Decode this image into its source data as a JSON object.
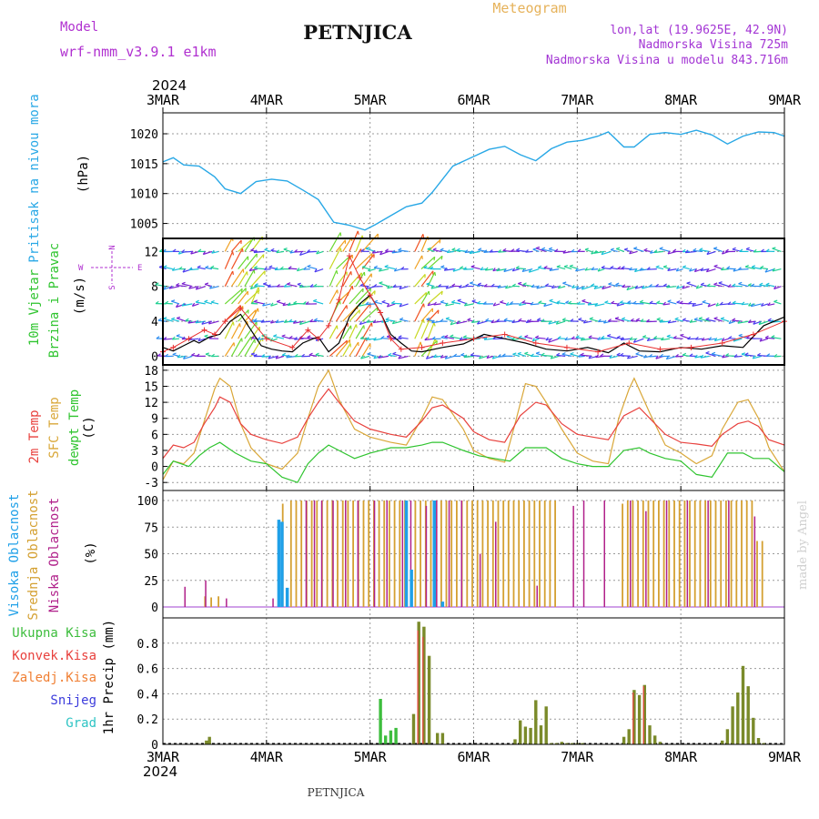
{
  "header": {
    "title": "PETNJICA",
    "subtitle": "Meteogram",
    "model_label": "Model",
    "model_name": "wrf-nmm_v3.9.1 e1km",
    "coords": "lon,lat (19.9625E, 42.9N)",
    "elevation": "Nadmorska Visina 725m",
    "model_elevation": "Nadmorska Visina u modelu 843.716m"
  },
  "axis": {
    "year": "2024",
    "dates": [
      "3MAR",
      "4MAR",
      "5MAR",
      "6MAR",
      "7MAR",
      "8MAR",
      "9MAR"
    ],
    "xlim": [
      0,
      6
    ]
  },
  "footer": {
    "location": "PETNJICA",
    "credit": "made by Angel"
  },
  "colors": {
    "pressure": "#29a8e6",
    "temp2m": "#e8413d",
    "sfc_temp": "#d9a738",
    "dewpt": "#2fc42f",
    "cloud_high": "#1fa0e8",
    "cloud_mid": "#d4a031",
    "cloud_low": "#b0208a",
    "precip_total": "#3dbd3d",
    "precip_conv": "#e8413d",
    "precip_frz": "#f07f33",
    "snow": "#3c3cdc",
    "hail": "#2ec4c4",
    "grid": "#9a9a9a",
    "title_orange": "#e6b25a",
    "meta_purple": "#a335d4",
    "label_purple": "#b030d0"
  },
  "chart_data": [
    {
      "panel": "pressure",
      "type": "line",
      "ylabel": [
        "Pritisak na nivou mora",
        "(hPa)"
      ],
      "yticks": [
        1005,
        1010,
        1015,
        1020
      ],
      "ylim": [
        1002.5,
        1023.5
      ],
      "x": [
        0,
        0.1,
        0.2,
        0.35,
        0.5,
        0.6,
        0.75,
        0.9,
        1.05,
        1.2,
        1.35,
        1.5,
        1.65,
        1.8,
        1.95,
        2.05,
        2.2,
        2.35,
        2.5,
        2.6,
        2.8,
        3.0,
        3.15,
        3.3,
        3.45,
        3.6,
        3.75,
        3.9,
        4.05,
        4.2,
        4.3,
        4.45,
        4.55,
        4.7,
        4.85,
        5.0,
        5.15,
        5.3,
        5.45,
        5.6,
        5.75,
        5.9,
        6.0
      ],
      "y": [
        1015.3,
        1016.0,
        1014.8,
        1014.6,
        1012.8,
        1010.8,
        1010.0,
        1012.0,
        1012.4,
        1012.1,
        1010.6,
        1009.0,
        1005.2,
        1004.7,
        1003.9,
        1004.8,
        1006.3,
        1007.8,
        1008.4,
        1010.2,
        1014.6,
        1016.2,
        1017.4,
        1017.9,
        1016.5,
        1015.5,
        1017.5,
        1018.6,
        1018.9,
        1019.6,
        1020.3,
        1017.8,
        1017.8,
        1019.9,
        1020.2,
        1019.9,
        1020.6,
        1019.8,
        1018.3,
        1019.6,
        1020.3,
        1020.2,
        1019.6
      ]
    },
    {
      "panel": "wind",
      "type": "barbs",
      "ylabel": [
        "10m Vjetar",
        "Brzina i Pravac",
        "(m/s)"
      ],
      "compass": {
        "n": "N",
        "s": "S",
        "e": "E",
        "w": "W"
      },
      "yticks": [
        0,
        4,
        8,
        12
      ],
      "ylim": [
        -1,
        13.5
      ],
      "speed_x": [
        0,
        0.1,
        0.2,
        0.3,
        0.35,
        0.45,
        0.55,
        0.65,
        0.75,
        0.85,
        0.95,
        1.05,
        1.15,
        1.25,
        1.35,
        1.45,
        1.5,
        1.6,
        1.7,
        1.8,
        1.9,
        2.0,
        2.1,
        2.2,
        2.3,
        2.4,
        2.5,
        2.7,
        2.9,
        3.1,
        3.3,
        3.5,
        3.7,
        3.9,
        4.1,
        4.3,
        4.45,
        4.6,
        4.8,
        5.0,
        5.2,
        5.4,
        5.6,
        5.8,
        6.0
      ],
      "speed_y": [
        1.0,
        0.6,
        1.2,
        1.8,
        1.5,
        2.2,
        2.5,
        4.0,
        4.8,
        3.0,
        1.2,
        0.8,
        0.6,
        0.5,
        1.5,
        2.0,
        2.2,
        0.5,
        1.5,
        4.5,
        6.0,
        7.0,
        5.0,
        2.5,
        1.5,
        0.6,
        0.5,
        1.0,
        1.4,
        2.5,
        2.0,
        1.5,
        0.8,
        0.6,
        1.0,
        0.4,
        1.5,
        0.6,
        0.5,
        1.0,
        0.8,
        1.2,
        1.0,
        3.5,
        4.5
      ],
      "gust_x": [
        0,
        0.1,
        0.25,
        0.4,
        0.5,
        0.6,
        0.75,
        1.0,
        1.25,
        1.4,
        1.5,
        1.6,
        1.7,
        1.8,
        1.9,
        2.0,
        2.1,
        2.2,
        2.3,
        2.5,
        2.7,
        3.0,
        3.3,
        3.6,
        3.9,
        4.2,
        4.5,
        4.8,
        5.1,
        5.4,
        5.7,
        6.0
      ],
      "gust_y": [
        0.5,
        1.0,
        2.0,
        3.0,
        2.5,
        4.0,
        5.5,
        2.0,
        1.0,
        3.0,
        2.0,
        3.5,
        6.5,
        11.5,
        9.0,
        7.0,
        5.0,
        2.0,
        0.8,
        1.0,
        1.5,
        2.0,
        2.5,
        1.5,
        1.0,
        0.5,
        1.5,
        0.8,
        1.0,
        1.5,
        2.5,
        4.0
      ]
    },
    {
      "panel": "temperature",
      "type": "line",
      "ylabel": [
        "2m Temp",
        "SFC Temp",
        "dewpt Temp",
        "(C)"
      ],
      "yticks": [
        -3,
        0,
        3,
        6,
        9,
        12,
        15,
        18
      ],
      "ylim": [
        -4.5,
        19
      ],
      "series": [
        {
          "name": "2m Temp",
          "x": [
            0,
            0.1,
            0.2,
            0.3,
            0.4,
            0.5,
            0.55,
            0.65,
            0.75,
            0.85,
            1.0,
            1.15,
            1.3,
            1.4,
            1.5,
            1.6,
            1.7,
            1.85,
            2.0,
            2.2,
            2.35,
            2.5,
            2.6,
            2.7,
            2.9,
            3.0,
            3.15,
            3.3,
            3.45,
            3.6,
            3.7,
            3.85,
            4.0,
            4.15,
            4.3,
            4.45,
            4.6,
            4.7,
            4.85,
            5.0,
            5.15,
            5.3,
            5.4,
            5.55,
            5.65,
            5.75,
            5.85,
            6.0
          ],
          "y": [
            1.5,
            4.0,
            3.5,
            4.5,
            8.0,
            11.0,
            13.0,
            12.0,
            8.0,
            6.0,
            5.0,
            4.3,
            5.5,
            9.0,
            12.0,
            14.5,
            12.0,
            8.5,
            7.0,
            6.0,
            5.5,
            8.5,
            11.0,
            11.5,
            9.0,
            6.5,
            5.0,
            4.5,
            9.5,
            12.0,
            11.5,
            8.0,
            6.0,
            5.5,
            5.0,
            9.5,
            11.0,
            9.0,
            6.0,
            4.5,
            4.2,
            3.8,
            6.0,
            8.0,
            8.5,
            7.5,
            5.0,
            4.0
          ]
        },
        {
          "name": "SFC Temp",
          "x": [
            0,
            0.1,
            0.2,
            0.3,
            0.4,
            0.5,
            0.55,
            0.65,
            0.75,
            0.85,
            1.0,
            1.15,
            1.3,
            1.4,
            1.5,
            1.6,
            1.7,
            1.85,
            2.0,
            2.2,
            2.35,
            2.5,
            2.6,
            2.7,
            2.9,
            3.0,
            3.15,
            3.3,
            3.4,
            3.5,
            3.6,
            3.7,
            3.85,
            4.0,
            4.15,
            4.3,
            4.4,
            4.5,
            4.55,
            4.7,
            4.85,
            5.0,
            5.15,
            5.3,
            5.4,
            5.55,
            5.65,
            5.75,
            5.85,
            6.0
          ],
          "y": [
            -2.5,
            1.0,
            0.5,
            2.5,
            8.5,
            14.5,
            16.5,
            15.0,
            8.0,
            3.5,
            0.5,
            -0.5,
            2.5,
            9.0,
            15.0,
            18.0,
            12.5,
            7.0,
            5.5,
            4.5,
            4.0,
            9.0,
            13.0,
            12.5,
            7.0,
            3.0,
            1.5,
            0.8,
            8.0,
            15.5,
            15.0,
            12.0,
            7.0,
            2.5,
            1.0,
            0.5,
            9.0,
            14.5,
            16.5,
            10.0,
            4.0,
            2.5,
            0.5,
            2.0,
            7.0,
            12.0,
            12.5,
            9.0,
            3.5,
            -1.0
          ]
        },
        {
          "name": "dewpt Temp",
          "x": [
            0,
            0.1,
            0.25,
            0.35,
            0.45,
            0.55,
            0.7,
            0.85,
            1.0,
            1.15,
            1.3,
            1.4,
            1.5,
            1.6,
            1.7,
            1.85,
            2.0,
            2.2,
            2.35,
            2.5,
            2.6,
            2.7,
            2.9,
            3.05,
            3.2,
            3.35,
            3.5,
            3.6,
            3.7,
            3.85,
            4.0,
            4.15,
            4.3,
            4.45,
            4.6,
            4.7,
            4.85,
            5.0,
            5.15,
            5.3,
            5.45,
            5.6,
            5.7,
            5.85,
            6.0
          ],
          "y": [
            -1.5,
            1.0,
            0.0,
            2.0,
            3.5,
            4.5,
            2.5,
            1.0,
            0.5,
            -2.0,
            -3.0,
            0.5,
            2.5,
            4.0,
            3.0,
            1.5,
            2.5,
            3.5,
            3.5,
            4.0,
            4.5,
            4.5,
            3.0,
            2.0,
            1.5,
            1.0,
            3.5,
            3.5,
            3.5,
            1.5,
            0.5,
            0.0,
            0.0,
            3.0,
            3.5,
            2.5,
            1.5,
            1.0,
            -1.5,
            -2.0,
            2.5,
            2.5,
            1.5,
            1.5,
            -1.0
          ]
        }
      ]
    },
    {
      "panel": "clouds",
      "type": "bar",
      "ylabel": [
        "Visoka Oblacnost",
        "Srednja Oblacnost",
        "Niska Oblacnost",
        "(%)"
      ],
      "yticks": [
        0,
        25,
        50,
        75,
        100
      ],
      "ylim": [
        0,
        100
      ],
      "series": [
        {
          "name": "Visoka Oblacnost",
          "x": [
            1.12,
            1.15,
            1.2,
            2.35,
            2.4,
            2.62,
            2.7
          ],
          "values": [
            82,
            80,
            18,
            100,
            35,
            100,
            5
          ]
        },
        {
          "name": "Srednja Oblacnost",
          "x": [
            0.42,
            0.48,
            0.55,
            1.17,
            1.25,
            1.3,
            1.35,
            1.4,
            1.45,
            1.5,
            1.55,
            1.6,
            1.65,
            1.7,
            1.75,
            1.8,
            1.85,
            1.9,
            1.95,
            2.0,
            2.05,
            2.1,
            2.15,
            2.2,
            2.25,
            2.3,
            2.35,
            2.45,
            2.5,
            2.55,
            2.6,
            2.65,
            2.7,
            2.75,
            2.8,
            2.85,
            2.9,
            2.95,
            3.0,
            3.05,
            3.1,
            3.15,
            3.2,
            3.25,
            3.3,
            3.35,
            3.4,
            3.45,
            3.5,
            3.55,
            3.6,
            3.65,
            3.7,
            3.75,
            3.8,
            4.45,
            4.5,
            4.55,
            4.6,
            4.65,
            4.7,
            4.75,
            4.8,
            4.85,
            4.9,
            4.95,
            5.0,
            5.05,
            5.1,
            5.15,
            5.2,
            5.25,
            5.3,
            5.35,
            5.4,
            5.45,
            5.5,
            5.55,
            5.6,
            5.65,
            5.7,
            5.75,
            5.8
          ],
          "values": [
            10,
            9,
            10,
            97,
            100,
            100,
            100,
            100,
            100,
            100,
            100,
            100,
            100,
            100,
            100,
            100,
            100,
            100,
            100,
            100,
            100,
            100,
            100,
            100,
            100,
            100,
            100,
            100,
            100,
            100,
            100,
            100,
            100,
            100,
            100,
            100,
            100,
            100,
            100,
            100,
            100,
            100,
            100,
            100,
            100,
            100,
            100,
            100,
            100,
            100,
            100,
            100,
            100,
            100,
            100,
            97,
            100,
            100,
            100,
            100,
            100,
            100,
            100,
            100,
            100,
            100,
            100,
            100,
            100,
            100,
            100,
            100,
            100,
            100,
            100,
            100,
            100,
            100,
            100,
            100,
            100,
            62,
            62
          ]
        },
        {
          "name": "Niska Oblacnost",
          "x": [
            0.2,
            0.4,
            0.6,
            1.05,
            1.1,
            1.37,
            1.45,
            1.52,
            1.63,
            1.75,
            1.87,
            2.03,
            2.15,
            2.3,
            2.38,
            2.53,
            2.63,
            2.75,
            2.87,
            3.05,
            3.2,
            3.6,
            3.95,
            4.05,
            4.25,
            4.5,
            4.65,
            4.85,
            5.05,
            5.25,
            5.45,
            5.7
          ],
          "values": [
            19,
            25,
            8,
            8,
            10,
            100,
            100,
            100,
            100,
            100,
            100,
            100,
            100,
            100,
            100,
            95,
            100,
            100,
            100,
            50,
            80,
            20,
            95,
            100,
            100,
            100,
            90,
            100,
            100,
            100,
            100,
            85
          ]
        }
      ]
    },
    {
      "panel": "precip",
      "type": "bar",
      "ylabel": [
        "1hr Precip (mm)"
      ],
      "legend": [
        "Ukupna Kisa",
        "Konvek.Kisa",
        "Zaledj.Kisa",
        "Snijeg",
        "Grad"
      ],
      "yticks": [
        0,
        0.2,
        0.4,
        0.6,
        0.8
      ],
      "ylim": [
        0,
        1.0
      ],
      "series": [
        {
          "name": "Ukupna Kisa",
          "x": [
            0.42,
            0.45,
            2.1,
            2.15,
            2.2,
            2.25,
            2.42,
            2.47,
            2.52,
            2.57,
            2.65,
            2.7,
            3.4,
            3.45,
            3.5,
            3.55,
            3.6,
            3.65,
            3.7,
            3.75,
            3.8,
            3.85,
            3.9,
            3.95,
            4.0,
            4.05,
            4.45,
            4.5,
            4.55,
            4.6,
            4.65,
            4.7,
            4.75,
            4.8,
            5.4,
            5.45,
            5.5,
            5.55,
            5.6,
            5.65,
            5.7,
            5.75,
            5.8
          ],
          "values": [
            0.03,
            0.06,
            0.36,
            0.07,
            0.11,
            0.13,
            0.24,
            0.97,
            0.93,
            0.7,
            0.09,
            0.09,
            0.04,
            0.19,
            0.14,
            0.13,
            0.35,
            0.15,
            0.3,
            0.01,
            0.01,
            0.02,
            0.01,
            0.01,
            0.01,
            0.01,
            0.06,
            0.12,
            0.43,
            0.39,
            0.47,
            0.15,
            0.07,
            0.02,
            0.03,
            0.12,
            0.3,
            0.41,
            0.62,
            0.46,
            0.21,
            0.05,
            0.01
          ]
        },
        {
          "name": "Konvek.Kisa",
          "x": [
            2.47,
            2.52,
            4.55,
            4.65
          ],
          "values": [
            0.9,
            0.85,
            0.41,
            0.46
          ]
        }
      ]
    }
  ]
}
